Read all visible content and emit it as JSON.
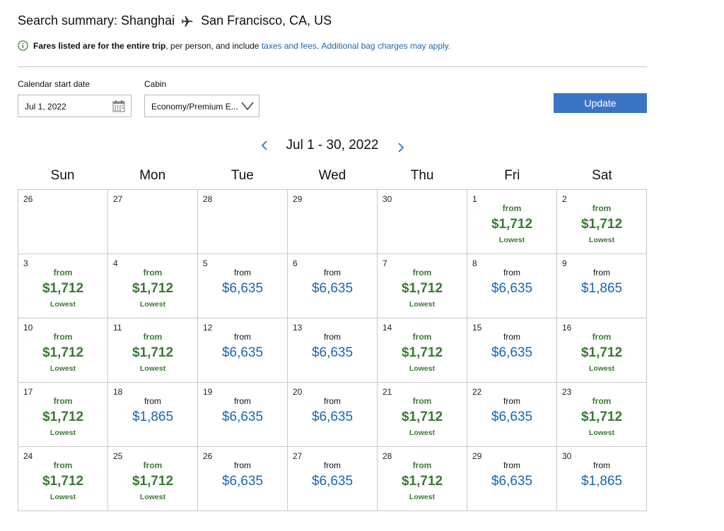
{
  "header": {
    "title_prefix": "Search summary: Shanghai",
    "destination": "San Francisco, CA, US",
    "plane_icon": "airplane-icon"
  },
  "notice": {
    "bold_text": "Fares listed are for the entire trip",
    "text_mid": ", per person, and include ",
    "link_taxes": "taxes and fees",
    "text_dot": ". ",
    "link_bags": "Additional bag charges may apply."
  },
  "filters": {
    "start_date_label": "Calendar start date",
    "start_date_value": "Jul 1, 2022",
    "cabin_label": "Cabin",
    "cabin_value": "Economy/Premium E...",
    "update_label": "Update"
  },
  "calendar": {
    "month_label": "Jul 1 - 30, 2022",
    "weekdays": [
      "Sun",
      "Mon",
      "Tue",
      "Wed",
      "Thu",
      "Fri",
      "Sat"
    ],
    "colors": {
      "lowest": "#3a7a33",
      "regular": "#1b66b0"
    },
    "days": [
      {
        "day": "26",
        "from": "",
        "price": "",
        "tag": "",
        "low": false
      },
      {
        "day": "27",
        "from": "",
        "price": "",
        "tag": "",
        "low": false
      },
      {
        "day": "28",
        "from": "",
        "price": "",
        "tag": "",
        "low": false
      },
      {
        "day": "29",
        "from": "",
        "price": "",
        "tag": "",
        "low": false
      },
      {
        "day": "30",
        "from": "",
        "price": "",
        "tag": "",
        "low": false
      },
      {
        "day": "1",
        "from": "from",
        "price": "$1,712",
        "tag": "Lowest",
        "low": true
      },
      {
        "day": "2",
        "from": "from",
        "price": "$1,712",
        "tag": "Lowest",
        "low": true
      },
      {
        "day": "3",
        "from": "from",
        "price": "$1,712",
        "tag": "Lowest",
        "low": true
      },
      {
        "day": "4",
        "from": "from",
        "price": "$1,712",
        "tag": "Lowest",
        "low": true
      },
      {
        "day": "5",
        "from": "from",
        "price": "$6,635",
        "tag": "",
        "low": false
      },
      {
        "day": "6",
        "from": "from",
        "price": "$6,635",
        "tag": "",
        "low": false
      },
      {
        "day": "7",
        "from": "from",
        "price": "$1,712",
        "tag": "Lowest",
        "low": true
      },
      {
        "day": "8",
        "from": "from",
        "price": "$6,635",
        "tag": "",
        "low": false
      },
      {
        "day": "9",
        "from": "from",
        "price": "$1,865",
        "tag": "",
        "low": false
      },
      {
        "day": "10",
        "from": "from",
        "price": "$1,712",
        "tag": "Lowest",
        "low": true
      },
      {
        "day": "11",
        "from": "from",
        "price": "$1,712",
        "tag": "Lowest",
        "low": true
      },
      {
        "day": "12",
        "from": "from",
        "price": "$6,635",
        "tag": "",
        "low": false
      },
      {
        "day": "13",
        "from": "from",
        "price": "$6,635",
        "tag": "",
        "low": false
      },
      {
        "day": "14",
        "from": "from",
        "price": "$1,712",
        "tag": "Lowest",
        "low": true
      },
      {
        "day": "15",
        "from": "from",
        "price": "$6,635",
        "tag": "",
        "low": false
      },
      {
        "day": "16",
        "from": "from",
        "price": "$1,712",
        "tag": "Lowest",
        "low": true
      },
      {
        "day": "17",
        "from": "from",
        "price": "$1,712",
        "tag": "Lowest",
        "low": true
      },
      {
        "day": "18",
        "from": "from",
        "price": "$1,865",
        "tag": "",
        "low": false
      },
      {
        "day": "19",
        "from": "from",
        "price": "$6,635",
        "tag": "",
        "low": false
      },
      {
        "day": "20",
        "from": "from",
        "price": "$6,635",
        "tag": "",
        "low": false
      },
      {
        "day": "21",
        "from": "from",
        "price": "$1,712",
        "tag": "Lowest",
        "low": true
      },
      {
        "day": "22",
        "from": "from",
        "price": "$6,635",
        "tag": "",
        "low": false
      },
      {
        "day": "23",
        "from": "from",
        "price": "$1,712",
        "tag": "Lowest",
        "low": true
      },
      {
        "day": "24",
        "from": "from",
        "price": "$1,712",
        "tag": "Lowest",
        "low": true
      },
      {
        "day": "25",
        "from": "from",
        "price": "$1,712",
        "tag": "Lowest",
        "low": true
      },
      {
        "day": "26",
        "from": "from",
        "price": "$6,635",
        "tag": "",
        "low": false
      },
      {
        "day": "27",
        "from": "from",
        "price": "$6,635",
        "tag": "",
        "low": false
      },
      {
        "day": "28",
        "from": "from",
        "price": "$1,712",
        "tag": "Lowest",
        "low": true
      },
      {
        "day": "29",
        "from": "from",
        "price": "$6,635",
        "tag": "",
        "low": false
      },
      {
        "day": "30",
        "from": "from",
        "price": "$1,865",
        "tag": "",
        "low": false
      }
    ]
  }
}
